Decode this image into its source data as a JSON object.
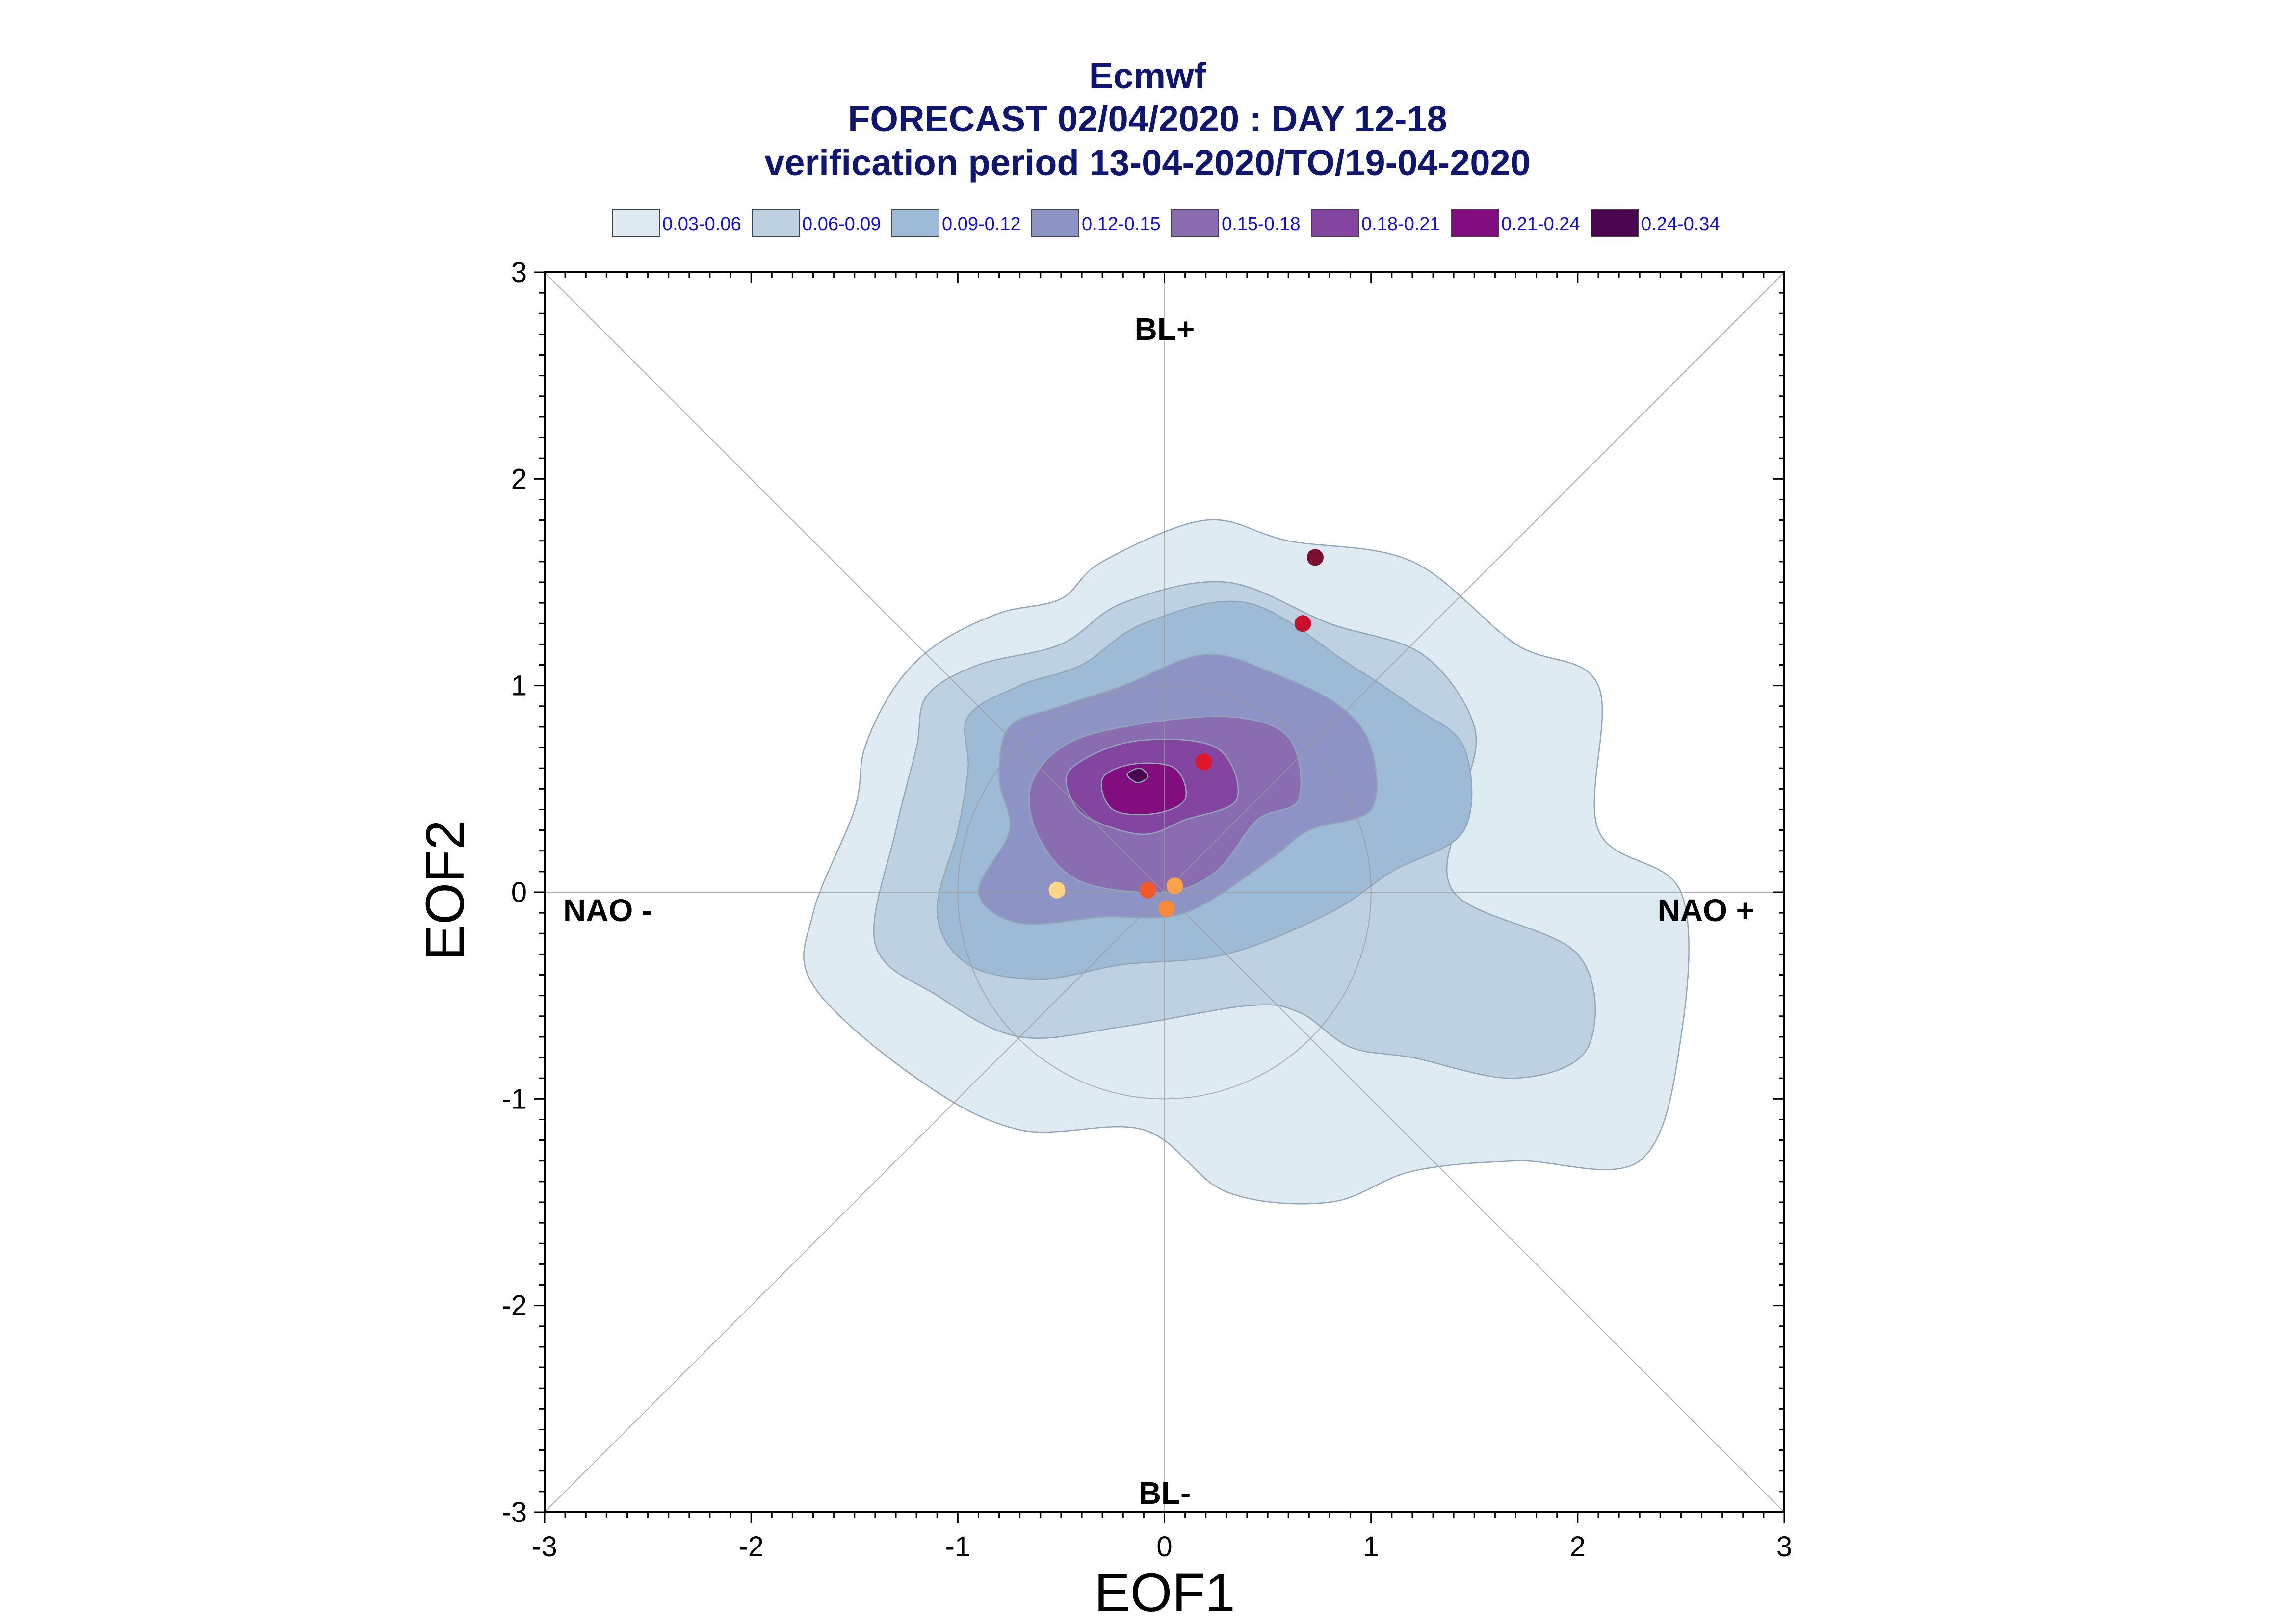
{
  "chart_data": {
    "type": "contour-scatter",
    "title": "Ecmwf",
    "subtitle": "FORECAST 02/04/2020 : DAY 12-18",
    "subtitle2": "verification period 13-04-2020/TO/19-04-2020",
    "xlabel": "EOF1",
    "ylabel": "EOF2",
    "xlim": [
      -3,
      3
    ],
    "ylim": [
      -3,
      3
    ],
    "xticks": [
      "-3",
      "-2",
      "-1",
      "0",
      "1",
      "2",
      "3"
    ],
    "yticks": [
      "-3",
      "-2",
      "-1",
      "0",
      "1",
      "2",
      "3"
    ],
    "grid": false,
    "legend_position": "top",
    "regime_labels": {
      "top": "BL+",
      "bottom": "BL-",
      "left": "NAO -",
      "right": "NAO +"
    },
    "density_levels": [
      {
        "label": "0.03-0.06",
        "color": "#deebf3"
      },
      {
        "label": "0.06-0.09",
        "color": "#bdd1e2"
      },
      {
        "label": "0.09-0.12",
        "color": "#9dbbd7"
      },
      {
        "label": "0.12-0.15",
        "color": "#8d93c5"
      },
      {
        "label": "0.15-0.18",
        "color": "#8a6db1"
      },
      {
        "label": "0.18-0.21",
        "color": "#8445a0"
      },
      {
        "label": "0.21-0.24",
        "color": "#820d7e"
      },
      {
        "label": "0.24-0.34",
        "color": "#49064f"
      }
    ],
    "contours": [
      [
        [
          -1.3,
          1.0
        ],
        [
          -1.1,
          1.2
        ],
        [
          -0.8,
          1.35
        ],
        [
          -0.5,
          1.42
        ],
        [
          -0.3,
          1.6
        ],
        [
          0.2,
          1.8
        ],
        [
          0.6,
          1.7
        ],
        [
          1.2,
          1.6
        ],
        [
          1.7,
          1.2
        ],
        [
          2.1,
          1.0
        ],
        [
          2.1,
          0.3
        ],
        [
          2.5,
          0.0
        ],
        [
          2.5,
          -0.7
        ],
        [
          2.3,
          -1.3
        ],
        [
          1.7,
          -1.3
        ],
        [
          1.2,
          -1.35
        ],
        [
          0.8,
          -1.5
        ],
        [
          0.3,
          -1.45
        ],
        [
          -0.1,
          -1.15
        ],
        [
          -0.7,
          -1.15
        ],
        [
          -1.2,
          -0.9
        ],
        [
          -1.7,
          -0.45
        ],
        [
          -1.7,
          -0.1
        ],
        [
          -1.5,
          0.4
        ],
        [
          -1.45,
          0.7
        ]
      ],
      [
        [
          -1.15,
          0.95
        ],
        [
          -0.9,
          1.1
        ],
        [
          -0.5,
          1.2
        ],
        [
          -0.2,
          1.4
        ],
        [
          0.3,
          1.5
        ],
        [
          0.8,
          1.3
        ],
        [
          1.25,
          1.15
        ],
        [
          1.5,
          0.8
        ],
        [
          1.45,
          0.45
        ],
        [
          1.4,
          0.0
        ],
        [
          2.0,
          -0.3
        ],
        [
          2.05,
          -0.75
        ],
        [
          1.7,
          -0.9
        ],
        [
          1.2,
          -0.8
        ],
        [
          0.9,
          -0.75
        ],
        [
          0.65,
          -0.58
        ],
        [
          0.4,
          -0.55
        ],
        [
          -0.2,
          -0.65
        ],
        [
          -0.7,
          -0.7
        ],
        [
          -1.1,
          -0.5
        ],
        [
          -1.4,
          -0.25
        ],
        [
          -1.3,
          0.3
        ],
        [
          -1.2,
          0.7
        ]
      ],
      [
        [
          -0.95,
          0.85
        ],
        [
          -0.7,
          1.0
        ],
        [
          -0.4,
          1.1
        ],
        [
          -0.1,
          1.3
        ],
        [
          0.4,
          1.4
        ],
        [
          0.9,
          1.1
        ],
        [
          1.2,
          0.9
        ],
        [
          1.45,
          0.7
        ],
        [
          1.45,
          0.3
        ],
        [
          1.1,
          0.1
        ],
        [
          0.8,
          -0.1
        ],
        [
          0.3,
          -0.3
        ],
        [
          -0.2,
          -0.35
        ],
        [
          -0.6,
          -0.42
        ],
        [
          -0.95,
          -0.35
        ],
        [
          -1.1,
          -0.1
        ],
        [
          -1.0,
          0.3
        ],
        [
          -0.95,
          0.6
        ]
      ],
      [
        [
          -0.75,
          0.8
        ],
        [
          -0.5,
          0.9
        ],
        [
          -0.2,
          1.0
        ],
        [
          0.2,
          1.15
        ],
        [
          0.55,
          1.05
        ],
        [
          0.85,
          0.9
        ],
        [
          1.0,
          0.7
        ],
        [
          1.0,
          0.4
        ],
        [
          0.7,
          0.3
        ],
        [
          0.5,
          0.15
        ],
        [
          0.1,
          -0.1
        ],
        [
          -0.3,
          -0.12
        ],
        [
          -0.7,
          -0.15
        ],
        [
          -0.9,
          0.0
        ],
        [
          -0.75,
          0.3
        ],
        [
          -0.8,
          0.55
        ]
      ],
      [
        [
          -0.5,
          0.7
        ],
        [
          -0.2,
          0.8
        ],
        [
          0.3,
          0.85
        ],
        [
          0.6,
          0.75
        ],
        [
          0.65,
          0.45
        ],
        [
          0.45,
          0.35
        ],
        [
          0.25,
          0.1
        ],
        [
          0.0,
          0.0
        ],
        [
          -0.4,
          0.05
        ],
        [
          -0.6,
          0.25
        ],
        [
          -0.65,
          0.5
        ]
      ],
      [
        [
          -0.45,
          0.6
        ],
        [
          -0.15,
          0.73
        ],
        [
          0.25,
          0.7
        ],
        [
          0.35,
          0.45
        ],
        [
          0.1,
          0.35
        ],
        [
          -0.1,
          0.28
        ],
        [
          -0.35,
          0.35
        ],
        [
          -0.45,
          0.45
        ]
      ],
      [
        [
          -0.3,
          0.55
        ],
        [
          -0.15,
          0.62
        ],
        [
          0.05,
          0.6
        ],
        [
          0.1,
          0.45
        ],
        [
          -0.05,
          0.38
        ],
        [
          -0.25,
          0.4
        ]
      ],
      [
        [
          -0.18,
          0.57
        ],
        [
          -0.12,
          0.6
        ],
        [
          -0.08,
          0.56
        ],
        [
          -0.13,
          0.53
        ]
      ]
    ],
    "members": [
      {
        "x": 0.73,
        "y": 1.62,
        "color": "#7a0f2e"
      },
      {
        "x": 0.67,
        "y": 1.3,
        "color": "#c8102e"
      },
      {
        "x": 0.19,
        "y": 0.63,
        "color": "#e0162b"
      },
      {
        "x": -0.52,
        "y": 0.01,
        "color": "#fcd587"
      },
      {
        "x": -0.08,
        "y": 0.01,
        "color": "#f0592a"
      },
      {
        "x": 0.05,
        "y": 0.03,
        "color": "#fca14c"
      },
      {
        "x": 0.01,
        "y": -0.08,
        "color": "#f78a3c"
      }
    ],
    "reference_circle": {
      "cx": 0,
      "cy": 0,
      "r": 1
    }
  }
}
